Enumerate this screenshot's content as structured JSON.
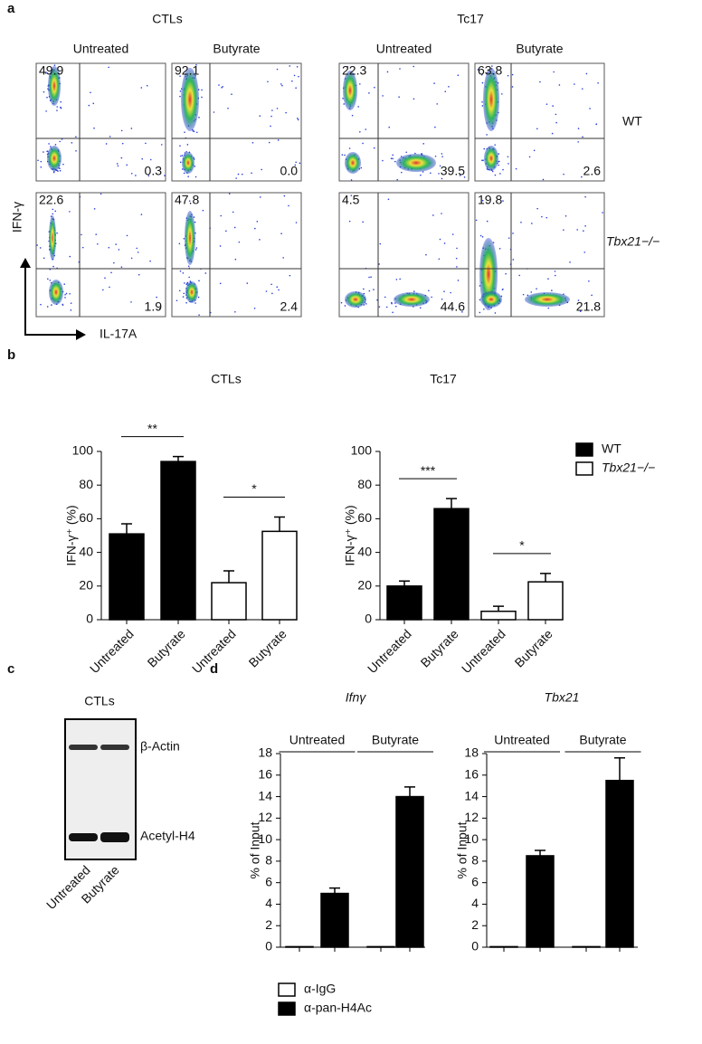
{
  "figure": {
    "panel_labels": [
      "a",
      "b",
      "c",
      "d"
    ]
  },
  "flow": {
    "groups": [
      "CTLs",
      "Tc17"
    ],
    "conditions": [
      "Untreated",
      "Butyrate",
      "Untreated",
      "Butyrate"
    ],
    "rows": [
      "WT",
      "Tbx21−/−"
    ],
    "y_axis": "IFN-γ",
    "x_axis": "IL-17A",
    "quadrants": [
      [
        [
          "49.9",
          "0.3"
        ],
        [
          "92.1",
          "0.0"
        ],
        [
          "22.3",
          "39.5"
        ],
        [
          "63.8",
          "2.6"
        ]
      ],
      [
        [
          "22.6",
          "1.9"
        ],
        [
          "47.8",
          "2.4"
        ],
        [
          "4.5",
          "44.6"
        ],
        [
          "19.8",
          "21.8"
        ]
      ]
    ]
  },
  "blot": {
    "title": "CTLs",
    "bands": [
      "β-Actin",
      "Acetyl-H4"
    ],
    "lanes": [
      "Untreated",
      "Butyrate"
    ]
  },
  "chart_data": [
    {
      "type": "bar",
      "title": "CTLs",
      "y_label": "IFN-γ⁺ (%)",
      "categories": [
        "Untreated",
        "Butyrate"
      ],
      "ylim": [
        0,
        100
      ],
      "yticks": [
        0,
        20,
        40,
        60,
        80,
        100
      ],
      "series": [
        {
          "color": "#000000",
          "values": [
            51,
            94
          ],
          "errors": [
            6,
            3
          ]
        },
        {
          "color": "#ffffff",
          "values": [
            22,
            52.5
          ],
          "errors": [
            7,
            8.5
          ]
        }
      ],
      "significance": [
        {
          "text": "**",
          "series": 0
        },
        {
          "text": "*",
          "series": 1
        }
      ]
    },
    {
      "type": "bar",
      "title": "Tc17",
      "y_label": "IFN-γ⁺ (%)",
      "categories": [
        "Untreated",
        "Butyrate"
      ],
      "ylim": [
        0,
        100
      ],
      "yticks": [
        0,
        20,
        40,
        60,
        80,
        100
      ],
      "series": [
        {
          "name": "WT",
          "color": "#000000",
          "values": [
            20,
            66
          ],
          "errors": [
            3,
            6
          ]
        },
        {
          "name": "Tbx21−/−",
          "color": "#ffffff",
          "values": [
            5,
            22.5
          ],
          "errors": [
            3,
            5
          ]
        }
      ],
      "significance": [
        {
          "text": "***",
          "series": 0
        },
        {
          "text": "*",
          "series": 1
        }
      ]
    },
    {
      "type": "bar",
      "title": "Ifnγ",
      "y_label": "% of Input",
      "categories": [
        "Untreated",
        "Butyrate"
      ],
      "ylim": [
        0,
        18
      ],
      "yticks": [
        0,
        2,
        4,
        6,
        8,
        10,
        12,
        14,
        16,
        18
      ],
      "series": [
        {
          "name": "α-IgG",
          "color": "#ffffff",
          "values": [
            0.05,
            0.05
          ],
          "errors": [
            0,
            0
          ]
        },
        {
          "name": "α-pan-H4Ac",
          "color": "#000000",
          "values": [
            5,
            14
          ],
          "errors": [
            0.5,
            0.9
          ]
        }
      ]
    },
    {
      "type": "bar",
      "title": "Tbx21",
      "y_label": "% of Input",
      "categories": [
        "Untreated",
        "Butyrate"
      ],
      "ylim": [
        0,
        18
      ],
      "yticks": [
        0,
        2,
        4,
        6,
        8,
        10,
        12,
        14,
        16,
        18
      ],
      "series": [
        {
          "color": "#ffffff",
          "values": [
            0.05,
            0.05
          ],
          "errors": [
            0,
            0
          ]
        },
        {
          "color": "#000000",
          "values": [
            8.5,
            15.5
          ],
          "errors": [
            0.5,
            2.1
          ]
        }
      ]
    }
  ]
}
